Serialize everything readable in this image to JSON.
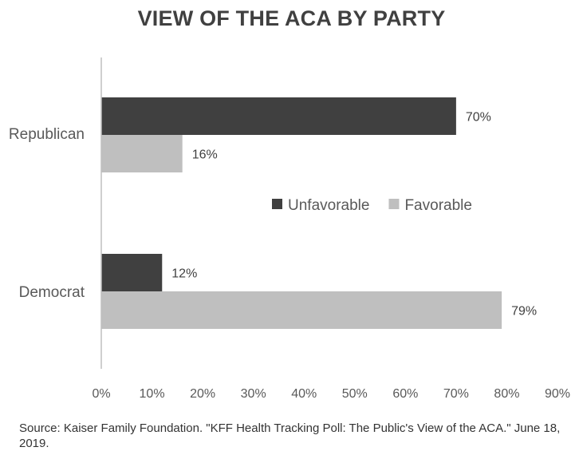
{
  "chart_data": {
    "type": "bar",
    "orientation": "horizontal",
    "title": "VIEW OF THE ACA BY PARTY",
    "categories": [
      "Republican",
      "Democrat"
    ],
    "series": [
      {
        "name": "Unfavorable",
        "values": [
          70,
          12
        ],
        "color": "#404040"
      },
      {
        "name": "Favorable",
        "values": [
          16,
          79
        ],
        "color": "#bfbfbf"
      }
    ],
    "data_labels": [
      [
        "70%",
        "12%"
      ],
      [
        "16%",
        "79%"
      ]
    ],
    "xlim": [
      0,
      90
    ],
    "x_ticks": [
      "0%",
      "10%",
      "20%",
      "30%",
      "40%",
      "50%",
      "60%",
      "70%",
      "80%",
      "90%"
    ],
    "xlabel": "",
    "ylabel": "",
    "grid": false,
    "legend_position": "center-right"
  },
  "source": "Source: Kaiser Family Foundation. \"KFF Health Tracking Poll: The Public's View of the ACA.\" June 18, 2019."
}
